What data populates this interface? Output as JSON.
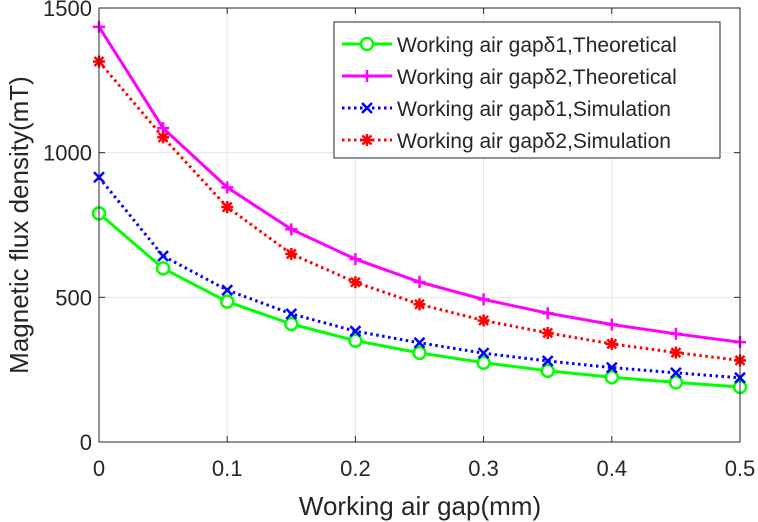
{
  "chart_data": {
    "type": "line",
    "title": "",
    "xlabel": "Working air gap(mm)",
    "ylabel": "Magnetic flux density(mT)",
    "xlim": [
      0,
      0.5
    ],
    "ylim": [
      0,
      1500
    ],
    "x_ticks": [
      "0",
      "0.1",
      "0.2",
      "0.3",
      "0.4",
      "0.5"
    ],
    "y_ticks": [
      "0",
      "500",
      "1000",
      "1500"
    ],
    "grid": true,
    "legend_position": "top-right",
    "x": [
      0,
      0.05,
      0.1,
      0.15,
      0.2,
      0.25,
      0.3,
      0.35,
      0.4,
      0.45,
      0.5
    ],
    "series": [
      {
        "name": "Working air gapδ1,Theoretical",
        "values": [
          790,
          600,
          485,
          408,
          350,
          308,
          274,
          246,
          224,
          206,
          190
        ],
        "color": "#00ff00",
        "line_style": "solid",
        "marker": "circle"
      },
      {
        "name": "Working air gapδ2,Theoretical",
        "values": [
          1435,
          1085,
          880,
          735,
          632,
          553,
          493,
          445,
          406,
          374,
          345
        ],
        "color": "#ff00ff",
        "line_style": "solid",
        "marker": "plus"
      },
      {
        "name": "Working air gapδ1,Simulation",
        "values": [
          915,
          643,
          525,
          443,
          383,
          343,
          307,
          280,
          257,
          239,
          222
        ],
        "color": "#0000ff",
        "line_style": "dotted",
        "marker": "x"
      },
      {
        "name": "Working air gapδ2,Simulation",
        "values": [
          1315,
          1053,
          812,
          650,
          552,
          476,
          420,
          377,
          339,
          309,
          282
        ],
        "color": "#ff0000",
        "line_style": "dotted",
        "marker": "asterisk"
      }
    ]
  }
}
